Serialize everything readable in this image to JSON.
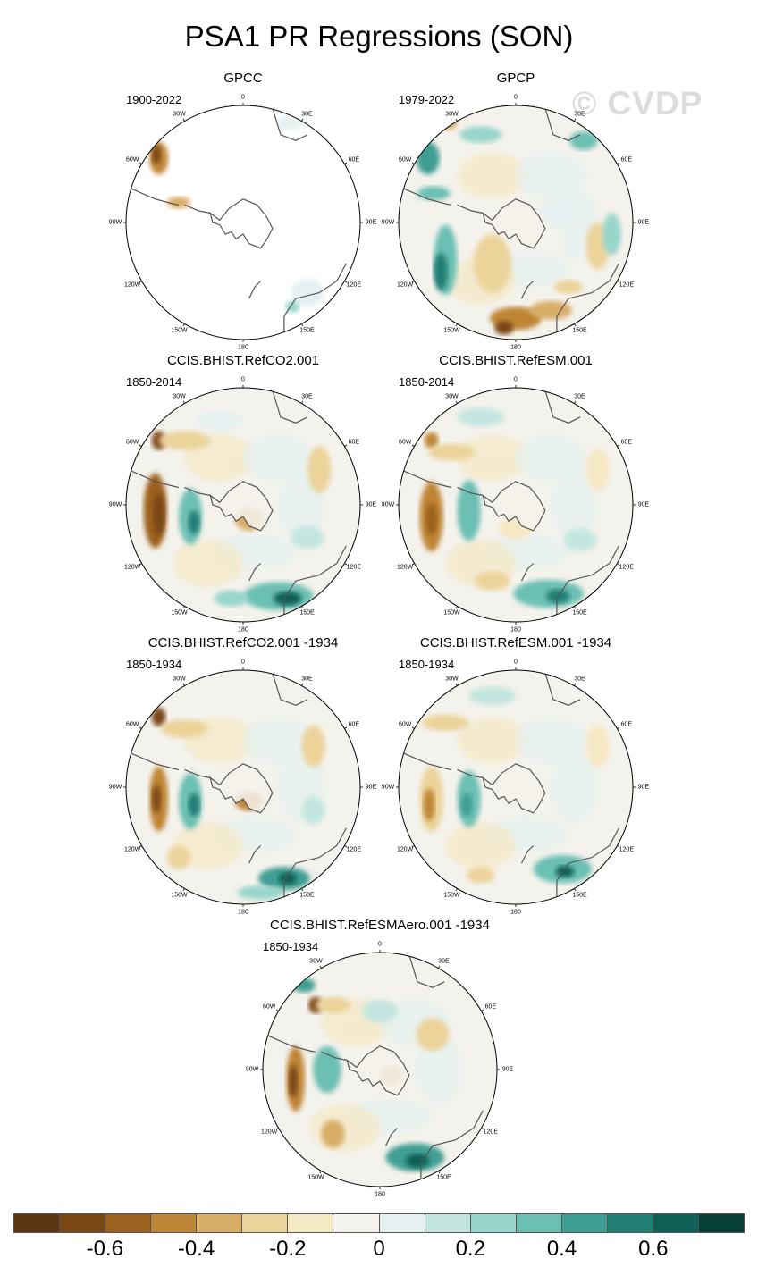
{
  "figure": {
    "title": "PSA1 PR Regressions (SON)",
    "watermark": "© CVDP"
  },
  "panels": [
    {
      "id": "gpcc",
      "title": "GPCC",
      "period": "1900-2022",
      "mask": "observed-land"
    },
    {
      "id": "gpcp",
      "title": "GPCP",
      "period": "1979-2022",
      "mask": "full"
    },
    {
      "id": "refco2",
      "title": "CCIS.BHIST.RefCO2.001",
      "period": "1850-2014",
      "mask": "full"
    },
    {
      "id": "refesm",
      "title": "CCIS.BHIST.RefESM.001",
      "period": "1850-2014",
      "mask": "full"
    },
    {
      "id": "refco2-1934",
      "title": "CCIS.BHIST.RefCO2.001 -1934",
      "period": "1850-1934",
      "mask": "full"
    },
    {
      "id": "refesm-1934",
      "title": "CCIS.BHIST.RefESM.001 -1934",
      "period": "1850-1934",
      "mask": "full"
    },
    {
      "id": "refesmaero-1934",
      "title": "CCIS.BHIST.RefESMAero.001 -1934",
      "period": "1850-1934",
      "mask": "full"
    }
  ],
  "longitude_labels": [
    "0",
    "30E",
    "60E",
    "90E",
    "120E",
    "150E",
    "180",
    "150W",
    "120W",
    "90W",
    "60W",
    "30W"
  ],
  "colorbar": {
    "colors": [
      "#5a3510",
      "#7a4714",
      "#9c611e",
      "#bf8536",
      "#d8ad68",
      "#ecd39a",
      "#f5e8c4",
      "#f4f2ec",
      "#e4f1f0",
      "#c4e6e0",
      "#98d5ca",
      "#6cbfb3",
      "#3f9e93",
      "#227e74",
      "#0e5f55",
      "#063f37"
    ],
    "labels": [
      "-0.6",
      "-0.4",
      "-0.2",
      "0",
      "0.2",
      "0.4",
      "0.6"
    ]
  }
}
